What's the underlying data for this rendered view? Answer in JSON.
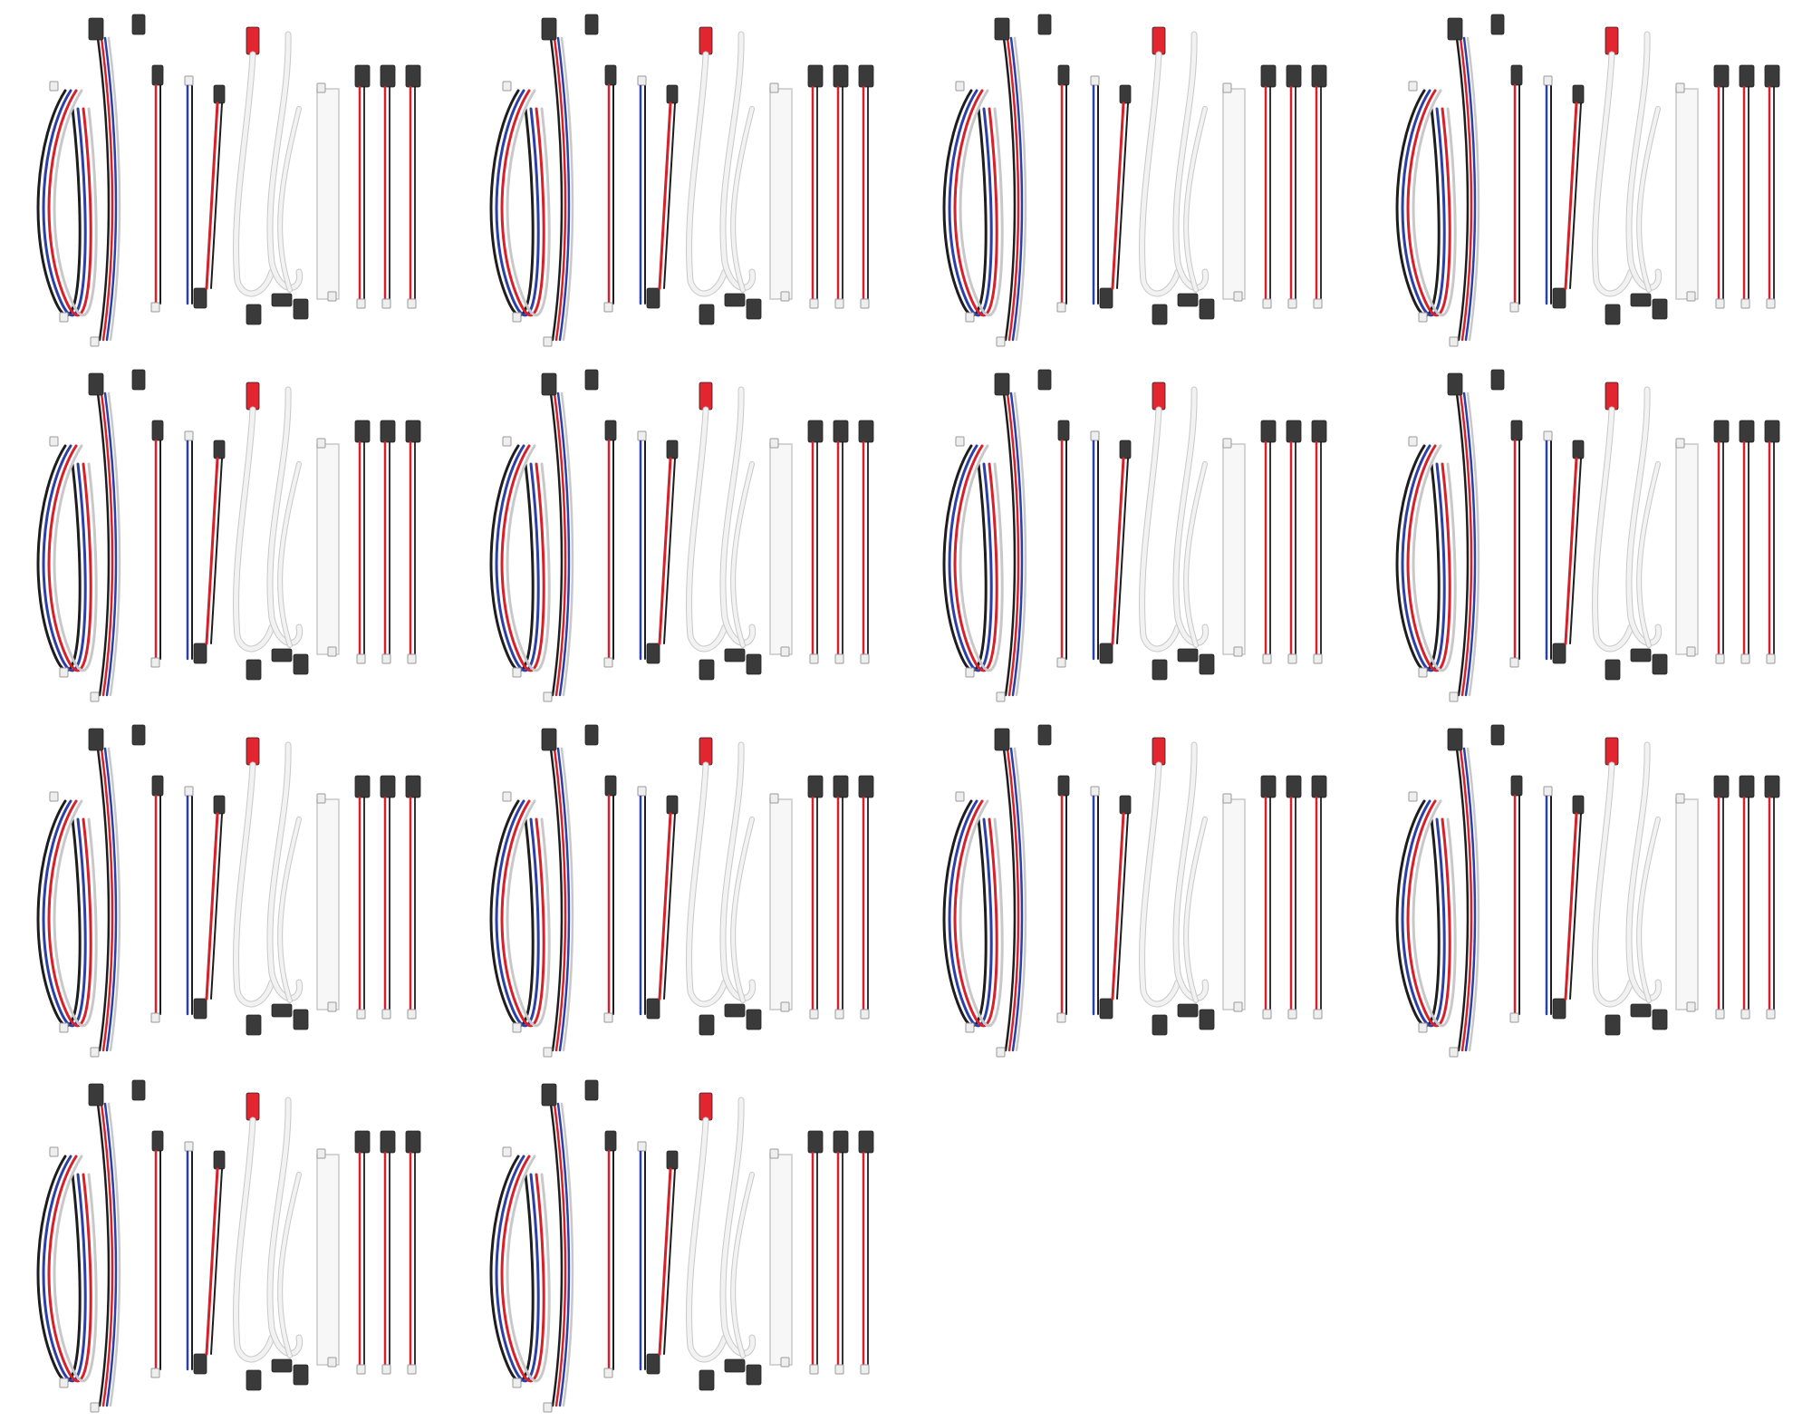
{
  "image": {
    "background_color": "#ffffff",
    "subject": "cable-set",
    "tile_count": 14,
    "tiles_per_row": [
      4,
      4,
      4,
      2
    ],
    "wire_colors": {
      "red": "#d8202a",
      "black": "#1d1d1d",
      "blue": "#2b3fa8",
      "white": "#f2f2f2",
      "white_outline": "#c8c8c8",
      "connector_dark": "#3a3a3a",
      "connector_red": "#e3252f",
      "connector_white": "#eeeeee"
    },
    "icons": [
      "cable-icon",
      "servo-connector-icon",
      "jst-connector-icon",
      "ribbon-cable-icon"
    ]
  }
}
